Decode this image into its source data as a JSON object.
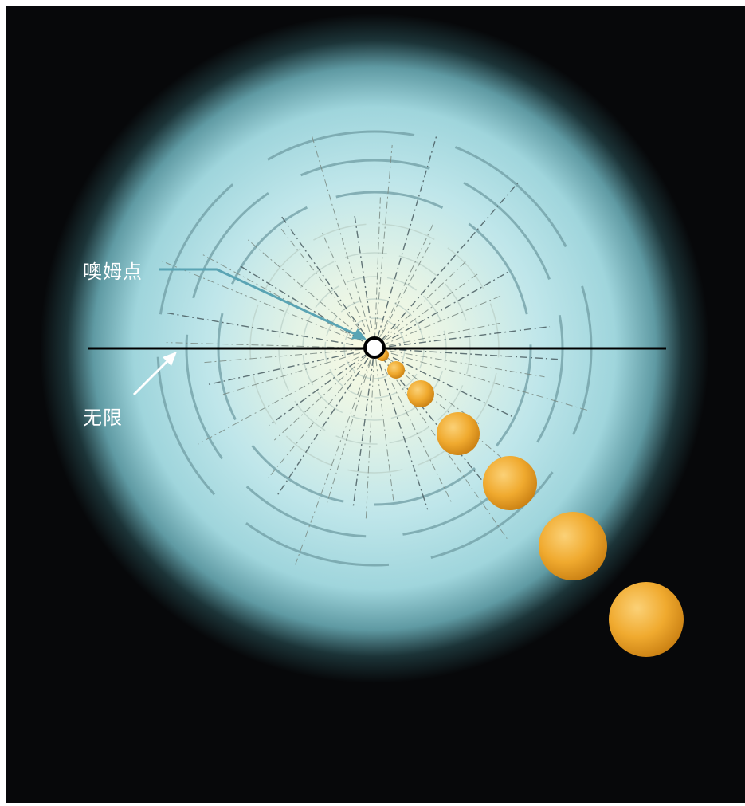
{
  "labels": {
    "omega_point": "噢姆点",
    "infinity": "无限"
  },
  "colors": {
    "background": "#07080a",
    "glow_core": "#fbfbe0",
    "glow_mid": "#bfe7ea",
    "glow_edge": "#8dc9cf",
    "arrow_omega": "#5aa4b4",
    "arrow_infinity": "#ffffff",
    "sphere_light": "#f8c45a",
    "sphere_dark": "#d98e16",
    "horizon_line": "#000000"
  },
  "spheres_count": 7
}
